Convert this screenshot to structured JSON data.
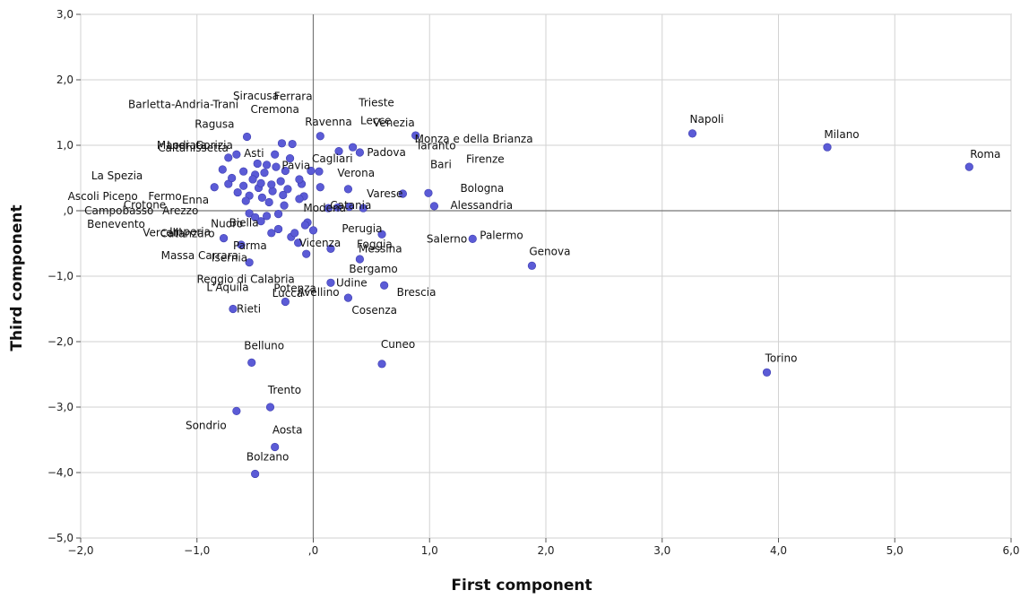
{
  "chart_data": {
    "type": "scatter",
    "title": "",
    "xlabel": "First component",
    "ylabel": "Third component",
    "xlim": [
      -2.0,
      6.0
    ],
    "ylim": [
      -5.0,
      3.0
    ],
    "xticks": [
      -2,
      -1,
      0,
      1,
      2,
      3,
      4,
      5,
      6
    ],
    "yticks": [
      -5,
      -4,
      -3,
      -2,
      -1,
      0,
      1,
      2,
      3
    ],
    "xtick_labels": [
      "−2,0",
      "−1,0",
      ",0",
      "1,0",
      "2,0",
      "3,0",
      "4,0",
      "5,0",
      "6,0"
    ],
    "ytick_labels": [
      "−5,0",
      "−4,0",
      "−3,0",
      "−2,0",
      "−1,0",
      ",0",
      "1,0",
      "2,0",
      "3,0"
    ],
    "grid": true,
    "reference_lines": {
      "x": 0,
      "y": 0
    },
    "marker_color": "#5b5bd6",
    "points": [
      {
        "x": 3.26,
        "y": 1.18
      },
      {
        "x": 4.42,
        "y": 0.97
      },
      {
        "x": 5.64,
        "y": 0.67
      },
      {
        "x": 3.9,
        "y": -2.47
      },
      {
        "x": 1.88,
        "y": -0.84
      },
      {
        "x": 1.37,
        "y": -0.43
      },
      {
        "x": 0.88,
        "y": 1.15
      },
      {
        "x": 0.4,
        "y": 0.89
      },
      {
        "x": 0.99,
        "y": 0.27
      },
      {
        "x": 1.04,
        "y": 0.07
      },
      {
        "x": 0.77,
        "y": 0.26
      },
      {
        "x": 0.59,
        "y": -0.36
      },
      {
        "x": 0.4,
        "y": -0.74
      },
      {
        "x": 0.61,
        "y": -1.14
      },
      {
        "x": 0.3,
        "y": -1.33
      },
      {
        "x": 0.15,
        "y": -1.1
      },
      {
        "x": 0.59,
        "y": -2.34
      },
      {
        "x": 0.06,
        "y": 1.14
      },
      {
        "x": 0.22,
        "y": 0.91
      },
      {
        "x": 0.34,
        "y": 0.97
      },
      {
        "x": 0.05,
        "y": 0.6
      },
      {
        "x": 0.3,
        "y": 0.33
      },
      {
        "x": 0.06,
        "y": 0.36
      },
      {
        "x": 0.43,
        "y": 0.04
      },
      {
        "x": 0.15,
        "y": -0.58
      },
      {
        "x": -0.06,
        "y": -0.66
      },
      {
        "x": -0.13,
        "y": -0.49
      },
      {
        "x": -0.19,
        "y": -0.4
      },
      {
        "x": -0.27,
        "y": 1.03
      },
      {
        "x": -0.18,
        "y": 1.02
      },
      {
        "x": -0.57,
        "y": 1.13
      },
      {
        "x": -0.73,
        "y": 0.81
      },
      {
        "x": -0.78,
        "y": 0.63
      },
      {
        "x": -0.73,
        "y": 0.41
      },
      {
        "x": -0.85,
        "y": 0.36
      },
      {
        "x": -0.55,
        "y": 0.23
      },
      {
        "x": -0.66,
        "y": 0.86
      },
      {
        "x": -0.55,
        "y": -0.04
      },
      {
        "x": -0.45,
        "y": -0.16
      },
      {
        "x": -0.3,
        "y": -0.28
      },
      {
        "x": -0.77,
        "y": -0.42
      },
      {
        "x": -0.62,
        "y": -0.52
      },
      {
        "x": -0.55,
        "y": -0.79
      },
      {
        "x": -0.69,
        "y": -1.5
      },
      {
        "x": -0.24,
        "y": -1.39
      },
      {
        "x": -0.53,
        "y": -2.32
      },
      {
        "x": -0.66,
        "y": -3.06
      },
      {
        "x": -0.37,
        "y": -3.0
      },
      {
        "x": -0.33,
        "y": -3.61
      },
      {
        "x": -0.5,
        "y": -4.02
      },
      {
        "x": -0.4,
        "y": 0.7
      },
      {
        "x": -0.24,
        "y": 0.61
      },
      {
        "x": -0.08,
        "y": 0.22
      },
      {
        "x": -0.02,
        "y": 0.61
      },
      {
        "x": 0.13,
        "y": 0.04
      },
      {
        "x": 0.21,
        "y": 0.05
      },
      {
        "x": 0.31,
        "y": 0.06
      },
      {
        "x": -0.6,
        "y": 0.38
      },
      {
        "x": -0.47,
        "y": 0.35
      },
      {
        "x": -0.35,
        "y": 0.3
      },
      {
        "x": -0.28,
        "y": 0.45
      },
      {
        "x": -0.5,
        "y": 0.55
      },
      {
        "x": -0.44,
        "y": 0.2
      },
      {
        "x": -0.38,
        "y": 0.13
      },
      {
        "x": -0.3,
        "y": -0.05
      },
      {
        "x": -0.4,
        "y": -0.08
      },
      {
        "x": -0.36,
        "y": -0.34
      },
      {
        "x": -0.2,
        "y": 0.8
      },
      {
        "x": -0.1,
        "y": 0.41
      },
      {
        "x": -0.05,
        "y": -0.18
      },
      {
        "x": -0.6,
        "y": 0.6
      },
      {
        "x": -0.48,
        "y": 0.72
      },
      {
        "x": -0.33,
        "y": 0.86
      },
      {
        "x": -0.65,
        "y": 0.28
      },
      {
        "x": -0.52,
        "y": 0.48
      },
      {
        "x": -0.42,
        "y": 0.58
      },
      {
        "x": -0.32,
        "y": 0.67
      },
      {
        "x": -0.22,
        "y": 0.33
      },
      {
        "x": -0.12,
        "y": 0.18
      },
      {
        "x": -0.45,
        "y": 0.42
      },
      {
        "x": -0.36,
        "y": 0.4
      },
      {
        "x": -0.26,
        "y": 0.24
      },
      {
        "x": -0.16,
        "y": -0.34
      },
      {
        "x": -0.07,
        "y": -0.22
      },
      {
        "x": -0.58,
        "y": 0.15
      },
      {
        "x": -0.5,
        "y": -0.1
      },
      {
        "x": -0.25,
        "y": 0.08
      },
      {
        "x": 0.0,
        "y": -0.3
      },
      {
        "x": -0.7,
        "y": 0.5
      },
      {
        "x": -0.12,
        "y": 0.48
      }
    ],
    "labels": [
      {
        "text": "Napoli",
        "x": 3.26,
        "y": 1.18
      },
      {
        "text": "Milano",
        "x": 4.42,
        "y": 0.97
      },
      {
        "text": "Roma",
        "x": 5.64,
        "y": 0.67
      },
      {
        "text": "Torino",
        "x": 3.9,
        "y": -2.47
      },
      {
        "text": "Genova",
        "x": 1.88,
        "y": -0.84
      },
      {
        "text": "Palermo",
        "x": 1.37,
        "y": -0.43
      },
      {
        "text": "Venezia",
        "x": 0.88,
        "y": 1.15
      },
      {
        "text": "Monza e della Brianza",
        "x": 0.88,
        "y": 1.15
      },
      {
        "text": "Padova",
        "x": 0.4,
        "y": 0.89
      },
      {
        "text": "Taranto",
        "x": 0.99,
        "y": 0.27
      },
      {
        "text": "Firenze",
        "x": 0.99,
        "y": 0.27
      },
      {
        "text": "Bari",
        "x": 0.99,
        "y": 0.27
      },
      {
        "text": "Bologna",
        "x": 1.04,
        "y": 0.07
      },
      {
        "text": "Alessandria",
        "x": 1.04,
        "y": 0.07
      },
      {
        "text": "Varese",
        "x": 0.77,
        "y": 0.26
      },
      {
        "text": "Catania",
        "x": 0.43,
        "y": 0.04
      },
      {
        "text": "Messina",
        "x": 0.59,
        "y": -0.36
      },
      {
        "text": "Salerno",
        "x": 1.37,
        "y": -0.43
      },
      {
        "text": "Foggia",
        "x": 0.59,
        "y": -0.36
      },
      {
        "text": "Perugia",
        "x": 0.4,
        "y": -0.74
      },
      {
        "text": "Bergamo",
        "x": 0.4,
        "y": -0.74
      },
      {
        "text": "Brescia",
        "x": 0.61,
        "y": -1.14
      },
      {
        "text": "Cosenza",
        "x": 0.3,
        "y": -1.33
      },
      {
        "text": "Udine",
        "x": 0.15,
        "y": -1.1
      },
      {
        "text": "Cuneo",
        "x": 0.59,
        "y": -2.34
      },
      {
        "text": "Ravenna",
        "x": 0.06,
        "y": 1.14
      },
      {
        "text": "Lecce",
        "x": 0.22,
        "y": 0.91
      },
      {
        "text": "Trieste",
        "x": 0.22,
        "y": 0.91
      },
      {
        "text": "Ferrara",
        "x": -0.18,
        "y": 1.02
      },
      {
        "text": "Siracusa",
        "x": -0.27,
        "y": 1.03
      },
      {
        "text": "Cremona",
        "x": -0.27,
        "y": 1.03
      },
      {
        "text": "Barletta-Andria-Trani",
        "x": -0.57,
        "y": 1.13
      },
      {
        "text": "Ragusa",
        "x": -0.57,
        "y": 1.13
      },
      {
        "text": "Cagliari",
        "x": 0.05,
        "y": 0.6
      },
      {
        "text": "Verona",
        "x": 0.3,
        "y": 0.33
      },
      {
        "text": "Gorizia",
        "x": -0.66,
        "y": 0.86
      },
      {
        "text": "Lodi",
        "x": -0.66,
        "y": 0.86
      },
      {
        "text": "Macerata",
        "x": -0.66,
        "y": 0.86
      },
      {
        "text": "La Spezia",
        "x": -0.78,
        "y": 0.63
      },
      {
        "text": "Caltanissetta",
        "x": -0.66,
        "y": 0.86
      },
      {
        "text": "Asti",
        "x": -0.4,
        "y": 0.7
      },
      {
        "text": "Pavia",
        "x": -0.24,
        "y": 0.61
      },
      {
        "text": "Ascoli Piceno",
        "x": -0.73,
        "y": 0.41
      },
      {
        "text": "Fermo",
        "x": -0.73,
        "y": 0.41
      },
      {
        "text": "Crotone",
        "x": -0.85,
        "y": 0.36
      },
      {
        "text": "Enna",
        "x": -0.55,
        "y": 0.23
      },
      {
        "text": "Campobasso",
        "x": -0.55,
        "y": -0.04
      },
      {
        "text": "Arezzo",
        "x": -0.55,
        "y": -0.04
      },
      {
        "text": "Nuoro",
        "x": -0.45,
        "y": -0.16
      },
      {
        "text": "Modena",
        "x": 0.13,
        "y": 0.04
      },
      {
        "text": "Benevento",
        "x": -0.55,
        "y": -0.04
      },
      {
        "text": "Imperia",
        "x": -0.45,
        "y": -0.16
      },
      {
        "text": "Biella",
        "x": -0.3,
        "y": -0.28
      },
      {
        "text": "Vercelli",
        "x": -0.77,
        "y": -0.42
      },
      {
        "text": "Catanzaro",
        "x": -0.77,
        "y": -0.42
      },
      {
        "text": "Vicenza",
        "x": -0.06,
        "y": -0.66
      },
      {
        "text": "Parma",
        "x": -0.36,
        "y": -0.34
      },
      {
        "text": "Massa Carrara",
        "x": -0.62,
        "y": -0.52
      },
      {
        "text": "Isernia",
        "x": -0.55,
        "y": -0.79
      },
      {
        "text": "Lucca",
        "x": -0.13,
        "y": -0.49
      },
      {
        "text": "Avellino",
        "x": -0.06,
        "y": -0.66
      },
      {
        "text": "Reggio di Calabria",
        "x": -0.55,
        "y": -0.79
      },
      {
        "text": "Potenza",
        "x": -0.24,
        "y": -1.39
      },
      {
        "text": "L'Aquila",
        "x": -0.69,
        "y": -1.5
      },
      {
        "text": "Rieti",
        "x": -0.69,
        "y": -1.5
      },
      {
        "text": "Belluno",
        "x": -0.53,
        "y": -2.32
      },
      {
        "text": "Trento",
        "x": -0.37,
        "y": -3.0
      },
      {
        "text": "Sondrio",
        "x": -0.66,
        "y": -3.06
      },
      {
        "text": "Aosta",
        "x": -0.33,
        "y": -3.61
      },
      {
        "text": "Bolzano",
        "x": -0.5,
        "y": -4.02
      }
    ]
  }
}
